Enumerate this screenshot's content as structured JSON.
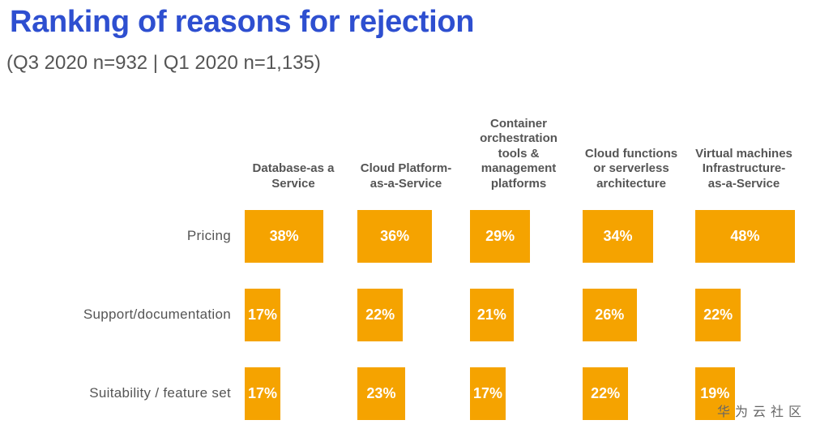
{
  "title": "Ranking of reasons for rejection",
  "subtitle": "(Q3 2020 n=932 | Q1 2020 n=1,135)",
  "watermark": "华为云社区",
  "colors": {
    "title": "#2E4FD0",
    "bar": "#F5A300",
    "label": "#555555"
  },
  "chart_data": {
    "type": "bar",
    "title": "Ranking of reasons for rejection",
    "subtitle": "(Q3 2020 n=932 | Q1 2020 n=1,135)",
    "orientation": "horizontal",
    "unit": "%",
    "categories": [
      "Pricing",
      "Support/documentation",
      "Suitability / feature set"
    ],
    "series": [
      {
        "name": "Database-as a\nService",
        "values": [
          38,
          17,
          17
        ]
      },
      {
        "name": "Cloud Platform-\nas-a-Service",
        "values": [
          36,
          22,
          23
        ]
      },
      {
        "name": "Container\norchestration\ntools &\nmanagement\nplatforms",
        "values": [
          29,
          21,
          17
        ]
      },
      {
        "name": "Cloud functions\nor serverless\narchitecture",
        "values": [
          34,
          26,
          22
        ]
      },
      {
        "name": "Virtual machines\nInfrastructure-\nas-a-Service",
        "values": [
          48,
          22,
          19
        ]
      }
    ],
    "xlim": [
      0,
      50
    ],
    "grid": false,
    "legend": "none"
  }
}
